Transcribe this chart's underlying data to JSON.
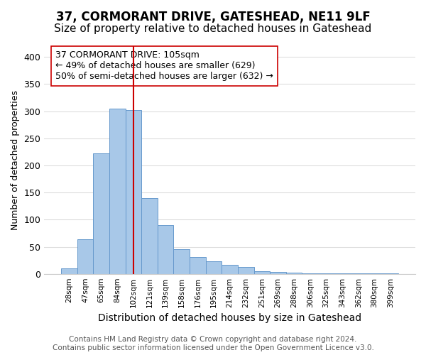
{
  "title": "37, CORMORANT DRIVE, GATESHEAD, NE11 9LF",
  "subtitle": "Size of property relative to detached houses in Gateshead",
  "xlabel": "Distribution of detached houses by size in Gateshead",
  "ylabel": "Number of detached properties",
  "bin_labels": [
    "28sqm",
    "47sqm",
    "65sqm",
    "84sqm",
    "102sqm",
    "121sqm",
    "139sqm",
    "158sqm",
    "176sqm",
    "195sqm",
    "214sqm",
    "232sqm",
    "251sqm",
    "269sqm",
    "288sqm",
    "306sqm",
    "325sqm",
    "343sqm",
    "362sqm",
    "380sqm",
    "399sqm"
  ],
  "bar_heights": [
    10,
    64,
    222,
    305,
    302,
    140,
    90,
    46,
    31,
    23,
    16,
    13,
    5,
    3,
    2,
    1,
    1,
    1,
    1,
    1,
    1
  ],
  "bar_color": "#a8c8e8",
  "bar_edge_color": "#6699cc",
  "vline_position": 4.5,
  "vline_color": "#cc0000",
  "annotation_text": "37 CORMORANT DRIVE: 105sqm\n← 49% of detached houses are smaller (629)\n50% of semi-detached houses are larger (632) →",
  "annotation_box_color": "#ffffff",
  "annotation_box_edge": "#cc0000",
  "ylim": [
    0,
    420
  ],
  "yticks": [
    0,
    50,
    100,
    150,
    200,
    250,
    300,
    350,
    400
  ],
  "footer_line1": "Contains HM Land Registry data © Crown copyright and database right 2024.",
  "footer_line2": "Contains public sector information licensed under the Open Government Licence v3.0.",
  "background_color": "#ffffff",
  "grid_color": "#dddddd",
  "title_fontsize": 12,
  "subtitle_fontsize": 11,
  "xlabel_fontsize": 10,
  "ylabel_fontsize": 9,
  "footer_fontsize": 7.5,
  "annotation_fontsize": 9
}
